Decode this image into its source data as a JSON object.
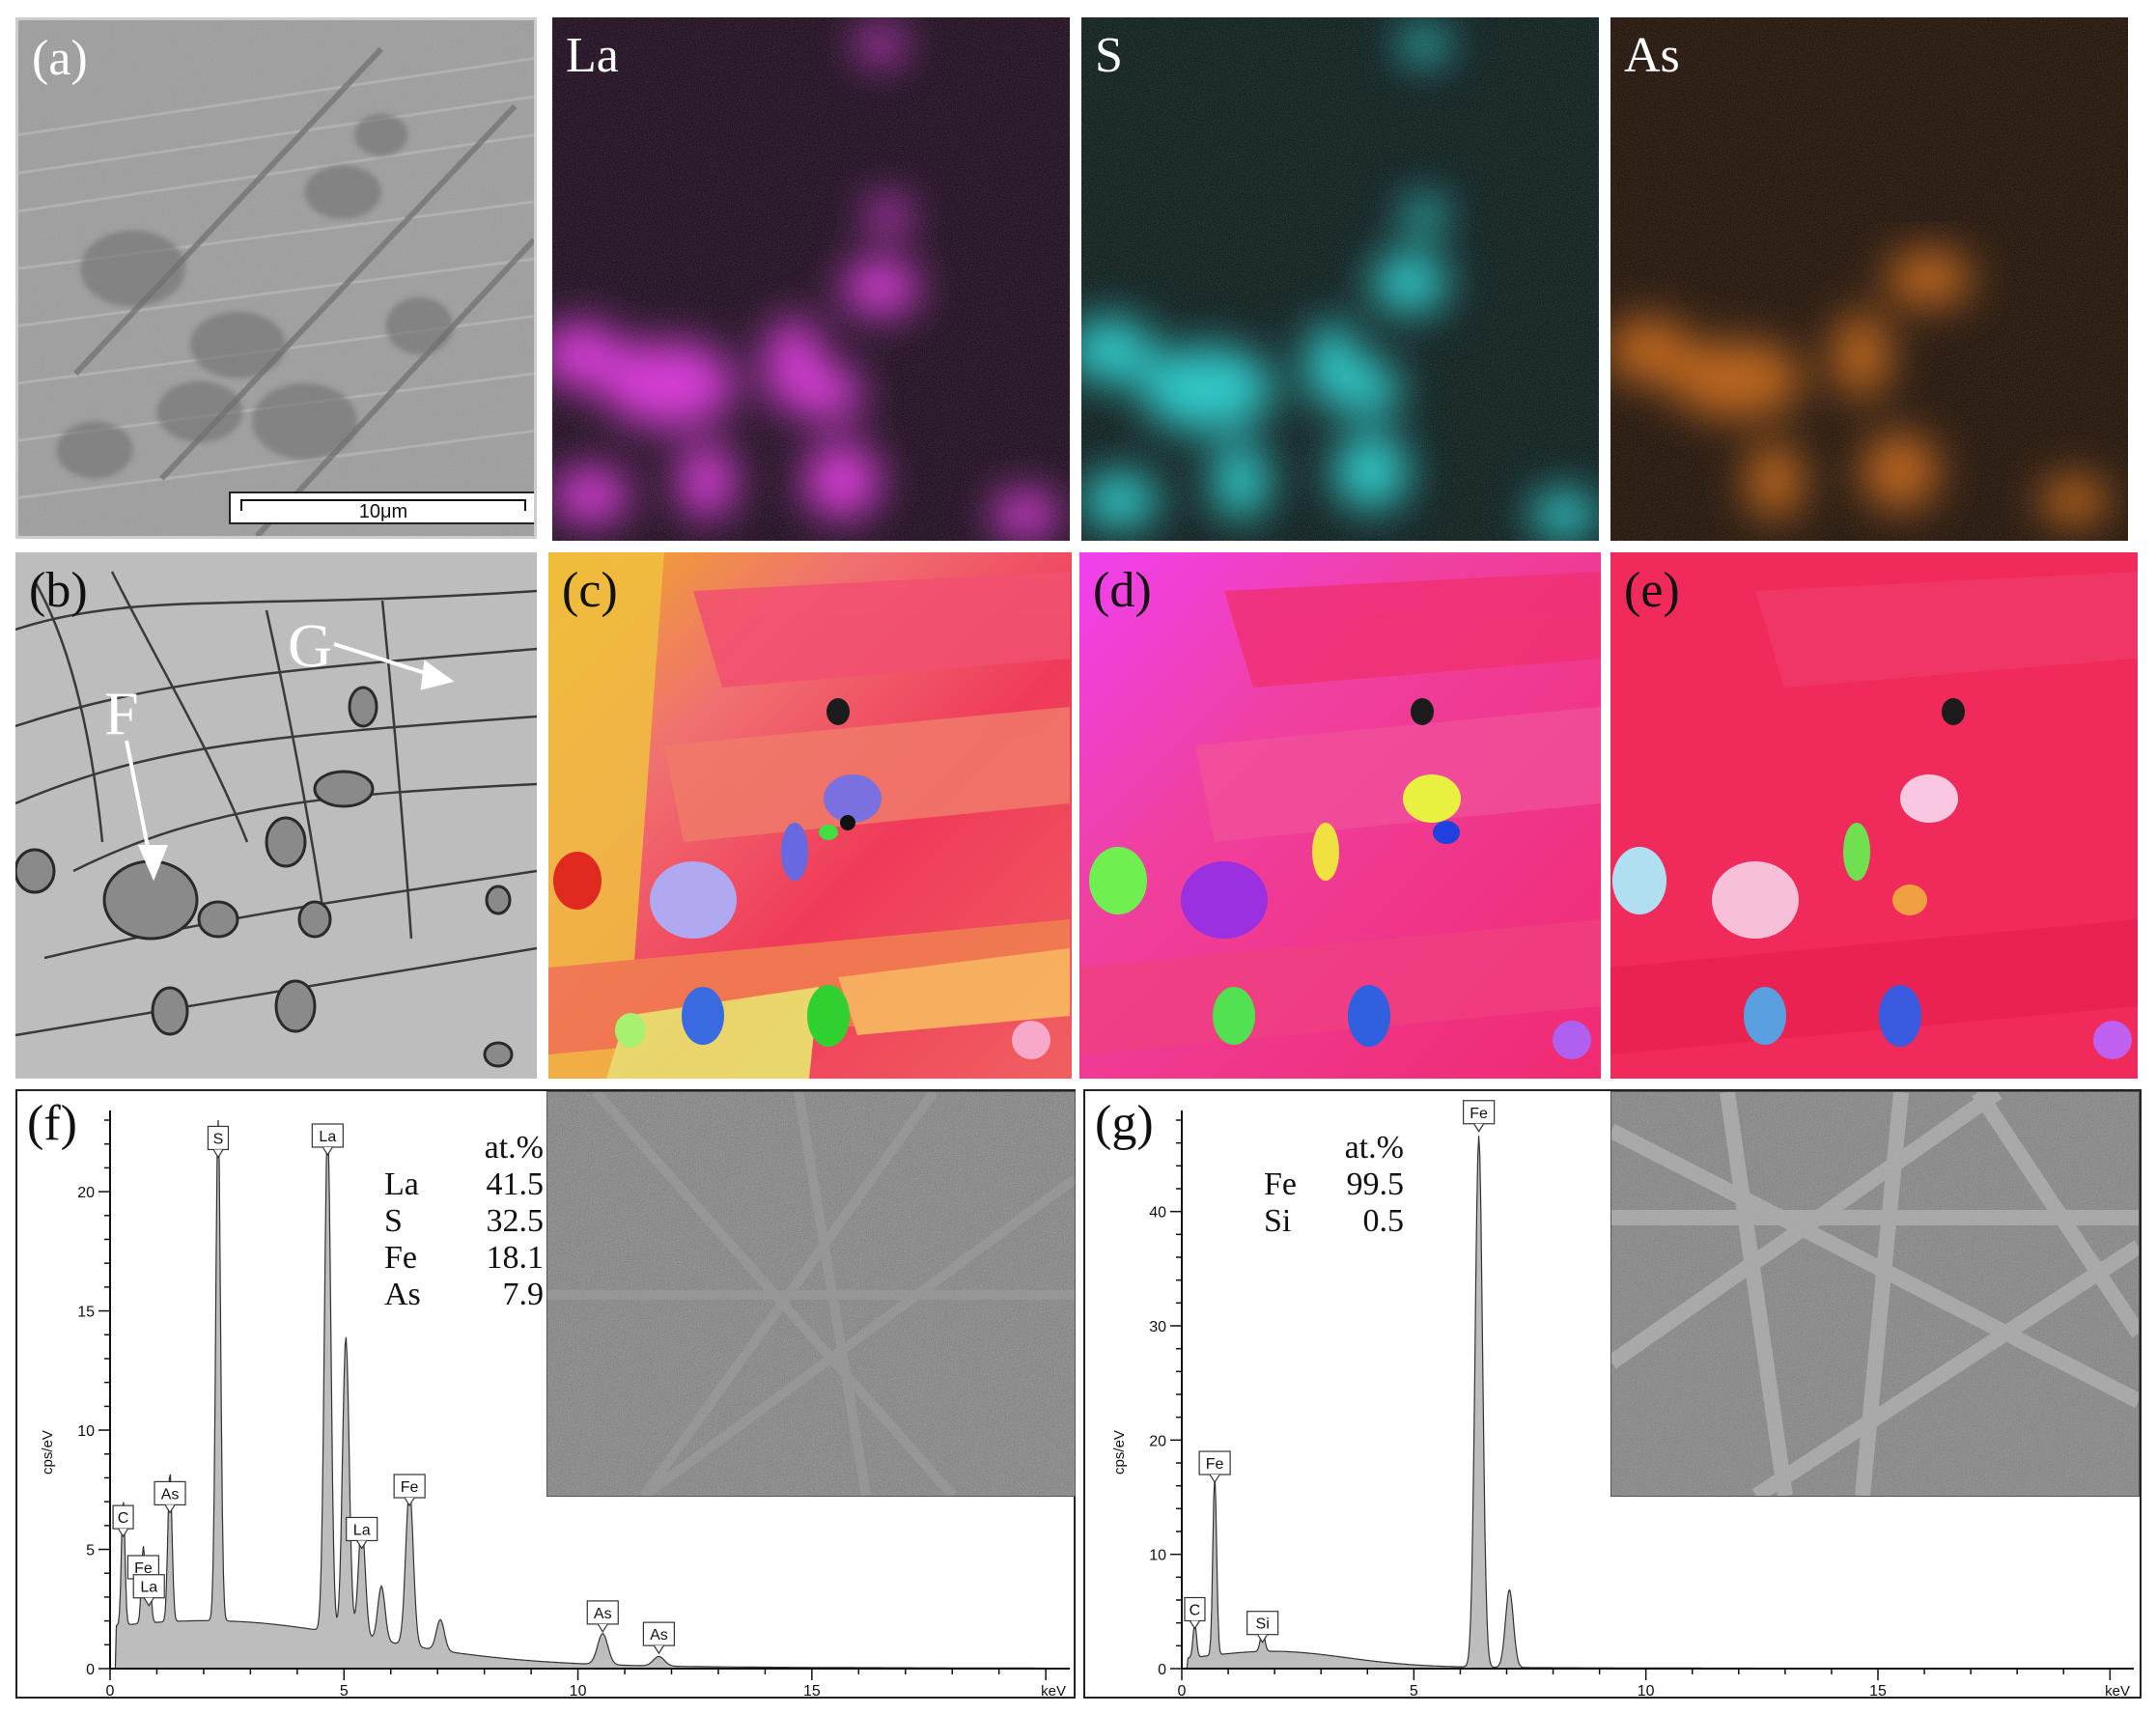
{
  "panels": {
    "a": {
      "label": "(a)",
      "scale_bar": "10μm"
    },
    "la": {
      "label": "La",
      "color": "#e040e0"
    },
    "s": {
      "label": "S",
      "color": "#30d0d0"
    },
    "as": {
      "label": "As",
      "color": "#e07820"
    },
    "b": {
      "label": "(b)",
      "annotations": [
        "G",
        "F"
      ]
    },
    "c": {
      "label": "(c)"
    },
    "d": {
      "label": "(d)"
    },
    "e": {
      "label": "(e)"
    }
  },
  "spectra": [
    {
      "label": "(f)",
      "composition_header": "at.%",
      "composition": [
        {
          "element": "La",
          "value": "41.5"
        },
        {
          "element": "S",
          "value": "32.5"
        },
        {
          "element": "Fe",
          "value": "18.1"
        },
        {
          "element": "As",
          "value": "7.9"
        }
      ]
    },
    {
      "label": "(g)",
      "composition_header": "at.%",
      "composition": [
        {
          "element": "Fe",
          "value": "99.5"
        },
        {
          "element": "Si",
          "value": "0.5"
        }
      ]
    }
  ],
  "chart_data": [
    {
      "type": "line",
      "xlabel": "keV",
      "ylabel": "cps/eV",
      "xlim": [
        0,
        20
      ],
      "ylim": [
        0,
        23
      ],
      "xticks": [
        "0",
        "5",
        "10",
        "15"
      ],
      "yticks": [
        "0",
        "5",
        "10",
        "15",
        "20"
      ],
      "peaks": [
        {
          "x": 0.28,
          "y": 5.3,
          "label": "C"
        },
        {
          "x": 0.71,
          "y": 3.2,
          "label": "Fe"
        },
        {
          "x": 0.83,
          "y": 2.4,
          "label": "La"
        },
        {
          "x": 1.28,
          "y": 6.3,
          "label": "As"
        },
        {
          "x": 2.31,
          "y": 21.2,
          "label": "S"
        },
        {
          "x": 4.65,
          "y": 21.3,
          "label": "La"
        },
        {
          "x": 5.04,
          "y": 12.5,
          "label": ""
        },
        {
          "x": 5.38,
          "y": 4.8,
          "label": "La"
        },
        {
          "x": 5.8,
          "y": 2.3,
          "label": ""
        },
        {
          "x": 6.4,
          "y": 6.6,
          "label": "Fe"
        },
        {
          "x": 7.06,
          "y": 1.3,
          "label": ""
        },
        {
          "x": 10.53,
          "y": 1.3,
          "label": "As"
        },
        {
          "x": 11.73,
          "y": 0.4,
          "label": "As"
        }
      ]
    },
    {
      "type": "line",
      "xlabel": "keV",
      "ylabel": "cps/eV",
      "xlim": [
        0,
        20
      ],
      "ylim": [
        0,
        48
      ],
      "xticks": [
        "0",
        "5",
        "10",
        "15"
      ],
      "yticks": [
        "0",
        "10",
        "20",
        "30",
        "40"
      ],
      "peaks": [
        {
          "x": 0.28,
          "y": 3.0,
          "label": "C"
        },
        {
          "x": 0.71,
          "y": 15.8,
          "label": "Fe"
        },
        {
          "x": 1.74,
          "y": 1.8,
          "label": "Si"
        },
        {
          "x": 6.4,
          "y": 46.5,
          "label": "Fe"
        },
        {
          "x": 7.06,
          "y": 6.8,
          "label": ""
        }
      ]
    }
  ]
}
